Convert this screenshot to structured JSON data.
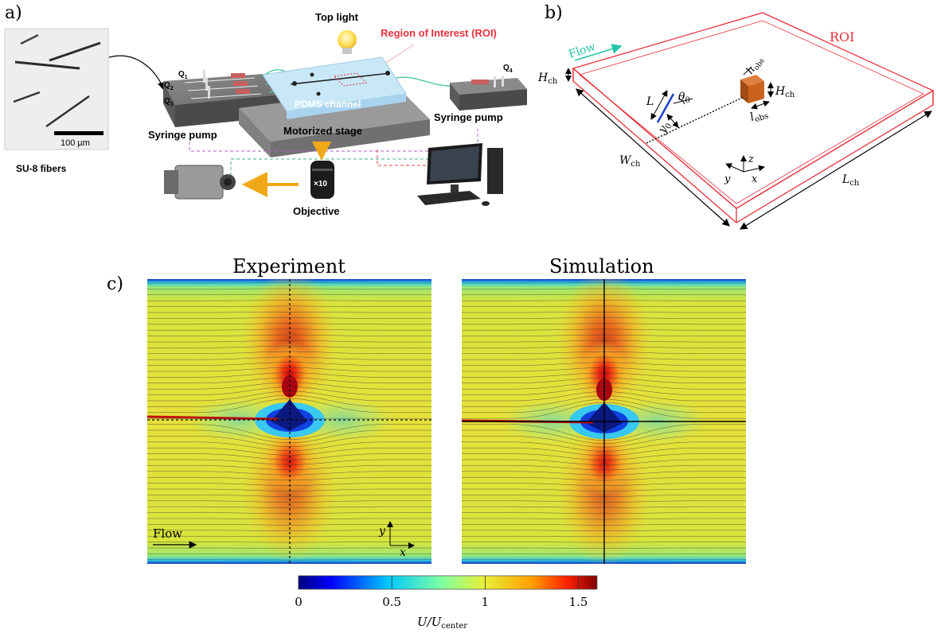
{
  "panel_a": {
    "label": "a)",
    "fibers_caption": "SU-8 fibers",
    "scale_bar": "100 µm",
    "top_light": "Top light",
    "roi": "Region of Interest (ROI)",
    "q1": "Q",
    "q1_sub": "1",
    "q2": "Q",
    "q2_sub": "2",
    "q3": "Q",
    "q3_sub": "3",
    "q4": "Q",
    "q4_sub": "4",
    "channel": "PDMS channel",
    "syringe_left": "Syringe pump",
    "stage": "Motorized stage",
    "syringe_right": "Syringe pump",
    "objective_mag": "×10",
    "objective": "Objective"
  },
  "panel_b": {
    "label": "b)",
    "flow": "Flow",
    "roi": "ROI",
    "H": "H",
    "ch": "ch",
    "h": "h",
    "obs": "obs",
    "L": "L",
    "theta": "θ",
    "zero": "0",
    "y": "y",
    "l": "l",
    "W": "W",
    "axis_x": "x",
    "axis_y": "y",
    "axis_z": "z"
  },
  "panel_c": {
    "label": "c)",
    "left_title": "Experiment",
    "right_title": "Simulation",
    "flow": "Flow",
    "axis_x": "x",
    "axis_y": "y",
    "colorbar": {
      "ticks": [
        "0",
        "0.5",
        "1",
        "1.5"
      ],
      "tick_values": [
        0,
        0.5,
        1,
        1.5
      ],
      "min": 0,
      "max": 1.6,
      "label_U": "U/U",
      "label_sub": "center"
    }
  },
  "colors": {
    "roi_red": "#e8323c",
    "flow_teal": "#22c6a6",
    "obstacle": "#c8621c",
    "fiber_blue": "#1a3fd0",
    "field_yellow": "#e8e43a",
    "field_red": "#d9221a",
    "field_blue": "#0a1f9c"
  }
}
